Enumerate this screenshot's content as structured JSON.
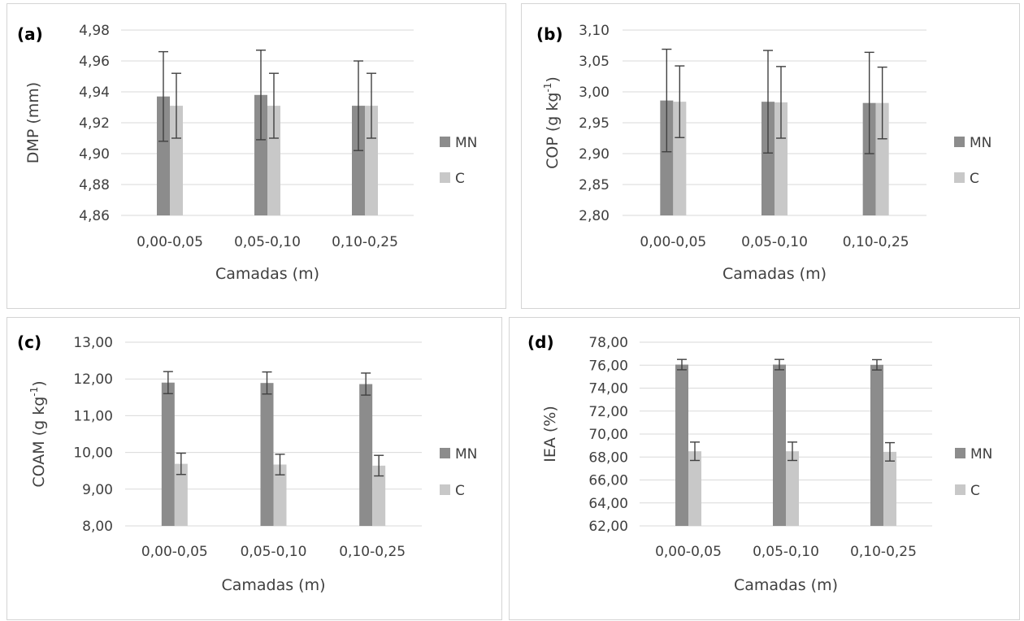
{
  "chart_data": [
    {
      "panel_label": "(a)",
      "type": "bar",
      "ylabel": "DMP (mm)",
      "ylabel_sup": "",
      "xlabel": "Camadas (m)",
      "categories": [
        "0,00-0,05",
        "0,05-0,10",
        "0,10-0,25"
      ],
      "ylim": [
        4.86,
        4.98
      ],
      "yticks": [
        "4,86",
        "4,88",
        "4,90",
        "4,92",
        "4,94",
        "4,96",
        "4,98"
      ],
      "grid": true,
      "legend": "right",
      "series": [
        {
          "name": "MN",
          "color": "#8c8c8c",
          "values": [
            4.937,
            4.938,
            4.931
          ],
          "error": [
            0.029,
            0.029,
            0.029
          ]
        },
        {
          "name": "C",
          "color": "#c8c8c8",
          "values": [
            4.931,
            4.931,
            4.931
          ],
          "error": [
            0.021,
            0.021,
            0.021
          ]
        }
      ]
    },
    {
      "panel_label": "(b)",
      "type": "bar",
      "ylabel": "COP (g kg",
      "ylabel_sup": "-1",
      "xlabel": "Camadas (m)",
      "categories": [
        "0,00-0,05",
        "0,05-0,10",
        "0,10-0,25"
      ],
      "ylim": [
        2.8,
        3.1
      ],
      "yticks": [
        "2,80",
        "2,85",
        "2,90",
        "2,95",
        "3,00",
        "3,05",
        "3,10"
      ],
      "grid": true,
      "legend": "right",
      "series": [
        {
          "name": "MN",
          "color": "#8c8c8c",
          "values": [
            2.986,
            2.984,
            2.982
          ],
          "error": [
            0.083,
            0.083,
            0.082
          ]
        },
        {
          "name": "C",
          "color": "#c8c8c8",
          "values": [
            2.984,
            2.983,
            2.982
          ],
          "error": [
            0.058,
            0.058,
            0.058
          ]
        }
      ]
    },
    {
      "panel_label": "(c)",
      "type": "bar",
      "ylabel": "COAM (g kg",
      "ylabel_sup": "-1",
      "xlabel": "Camadas (m)",
      "categories": [
        "0,00-0,05",
        "0,05-0,10",
        "0,10-0,25"
      ],
      "ylim": [
        8.0,
        13.0
      ],
      "yticks": [
        "8,00",
        "9,00",
        "10,00",
        "11,00",
        "12,00",
        "13,00"
      ],
      "grid": true,
      "legend": "right",
      "series": [
        {
          "name": "MN",
          "color": "#8c8c8c",
          "values": [
            11.9,
            11.89,
            11.86
          ],
          "error": [
            0.3,
            0.3,
            0.3
          ]
        },
        {
          "name": "C",
          "color": "#c8c8c8",
          "values": [
            9.69,
            9.67,
            9.64
          ],
          "error": [
            0.29,
            0.28,
            0.28
          ]
        }
      ]
    },
    {
      "panel_label": "(d)",
      "type": "bar",
      "ylabel": "IEA (%)",
      "ylabel_sup": "",
      "xlabel": "Camadas (m)",
      "categories": [
        "0,00-0,05",
        "0,05-0,10",
        "0,10-0,25"
      ],
      "ylim": [
        62.0,
        78.0
      ],
      "yticks": [
        "62,00",
        "64,00",
        "66,00",
        "68,00",
        "70,00",
        "72,00",
        "74,00",
        "76,00",
        "78,00"
      ],
      "grid": true,
      "legend": "right",
      "series": [
        {
          "name": "MN",
          "color": "#8c8c8c",
          "values": [
            76.05,
            76.05,
            76.03
          ],
          "error": [
            0.45,
            0.45,
            0.45
          ]
        },
        {
          "name": "C",
          "color": "#c8c8c8",
          "values": [
            68.5,
            68.5,
            68.45
          ],
          "error": [
            0.8,
            0.8,
            0.8
          ]
        }
      ]
    }
  ]
}
